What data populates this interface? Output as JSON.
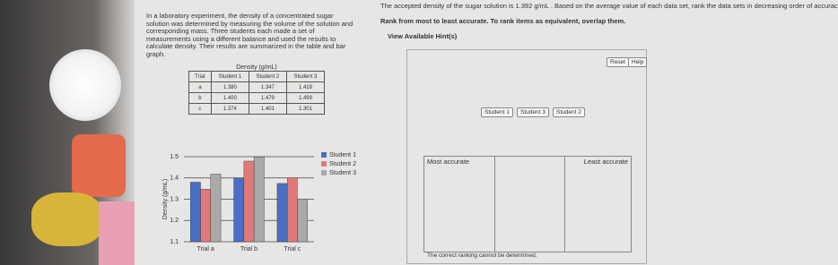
{
  "problem": {
    "text": "In a laboratory experiment, the density of a concentrated sugar solution was determined by measuring the volume of the solution and corresponding mass. Three students each made a set of measurements using a different balance and used the results to calculate density. Their results are summarized in the table and bar graph."
  },
  "table": {
    "caption": "Density (g/mL)",
    "header": [
      "Trial",
      "Student 1",
      "Student 2",
      "Student 3"
    ],
    "rows": [
      [
        "a",
        "1.380",
        "1.347",
        "1.418"
      ],
      [
        "b",
        "1.400",
        "1.479",
        "1.499"
      ],
      [
        "c",
        "1.374",
        "1.401",
        "1.301"
      ]
    ]
  },
  "chart_data": {
    "type": "bar",
    "y_label": "Density (g/mL)",
    "categories": [
      "Trial a",
      "Trial b",
      "Trial c"
    ],
    "series": [
      {
        "name": "Student 1",
        "color": "#4a6fc4",
        "values": [
          1.38,
          1.4,
          1.374
        ]
      },
      {
        "name": "Student 2",
        "color": "#e07a7a",
        "values": [
          1.347,
          1.479,
          1.401
        ]
      },
      {
        "name": "Student 3",
        "color": "#a9a9a9",
        "values": [
          1.418,
          1.499,
          1.301
        ]
      }
    ],
    "ylim": [
      1.1,
      1.5
    ],
    "yticks": [
      1.1,
      1.2,
      1.3,
      1.4,
      1.5
    ],
    "grid": true,
    "legend": "right"
  },
  "ranking": {
    "question": "The accepted density of the sugar solution is 1.392 g/mL . Based on the average value of each data set, rank the data sets in decreasing order of accuracy",
    "instruction": "Rank from most to least accurate. To rank items as equivalent, overlap them.",
    "hint": "View Available Hint(s)",
    "buttons": [
      "Reset",
      "Help"
    ],
    "items": [
      "Student 1",
      "Student 3",
      "Student 2"
    ],
    "most": "Most accurate",
    "least": "Least accurate",
    "undetermined": "The correct ranking cannot be determined."
  }
}
